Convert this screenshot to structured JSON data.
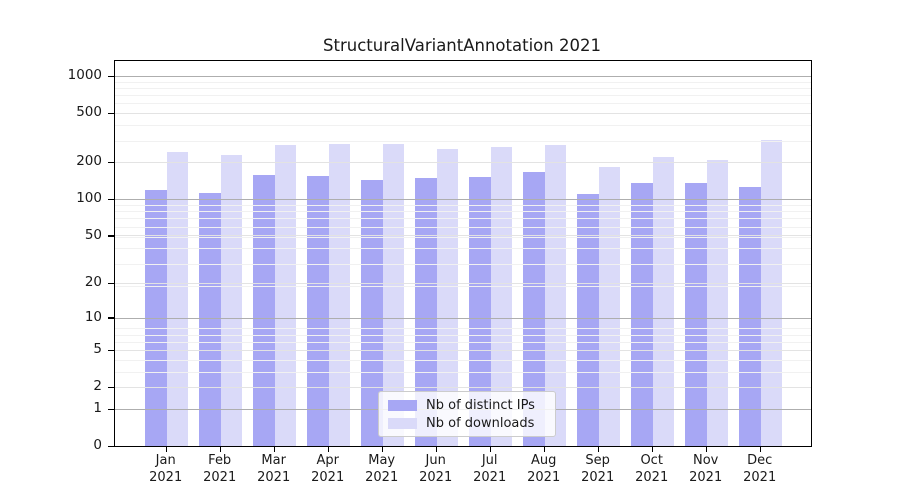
{
  "chart_data": {
    "type": "bar",
    "title": "StructuralVariantAnnotation 2021",
    "categories": [
      "Jan",
      "Feb",
      "Mar",
      "Apr",
      "May",
      "Jun",
      "Jul",
      "Aug",
      "Sep",
      "Oct",
      "Nov",
      "Dec"
    ],
    "year_label": "2021",
    "series": [
      {
        "name": "Nb of distinct IPs",
        "color": "#a7a7f4",
        "values": [
          118,
          112,
          156,
          153,
          142,
          148,
          152,
          167,
          110,
          136,
          136,
          126
        ]
      },
      {
        "name": "Nb of downloads",
        "color": "#dadaf9",
        "values": [
          241,
          227,
          275,
          278,
          280,
          254,
          265,
          277,
          183,
          221,
          207,
          305
        ]
      }
    ],
    "y_ticks": [
      0,
      1,
      2,
      5,
      10,
      20,
      50,
      100,
      200,
      500,
      1000
    ],
    "y_scale": "log1p",
    "ylim": [
      0,
      1300
    ],
    "grid": "on",
    "legend_position": "lower center"
  },
  "colors": {
    "axis_spine": "#000000",
    "major_grid": "#aeaeae",
    "labeled_grid": "#e3e3e3",
    "minor_grid": "#f1f1f1",
    "text": "#1a1a1a",
    "legend_border": "#cccccc"
  }
}
